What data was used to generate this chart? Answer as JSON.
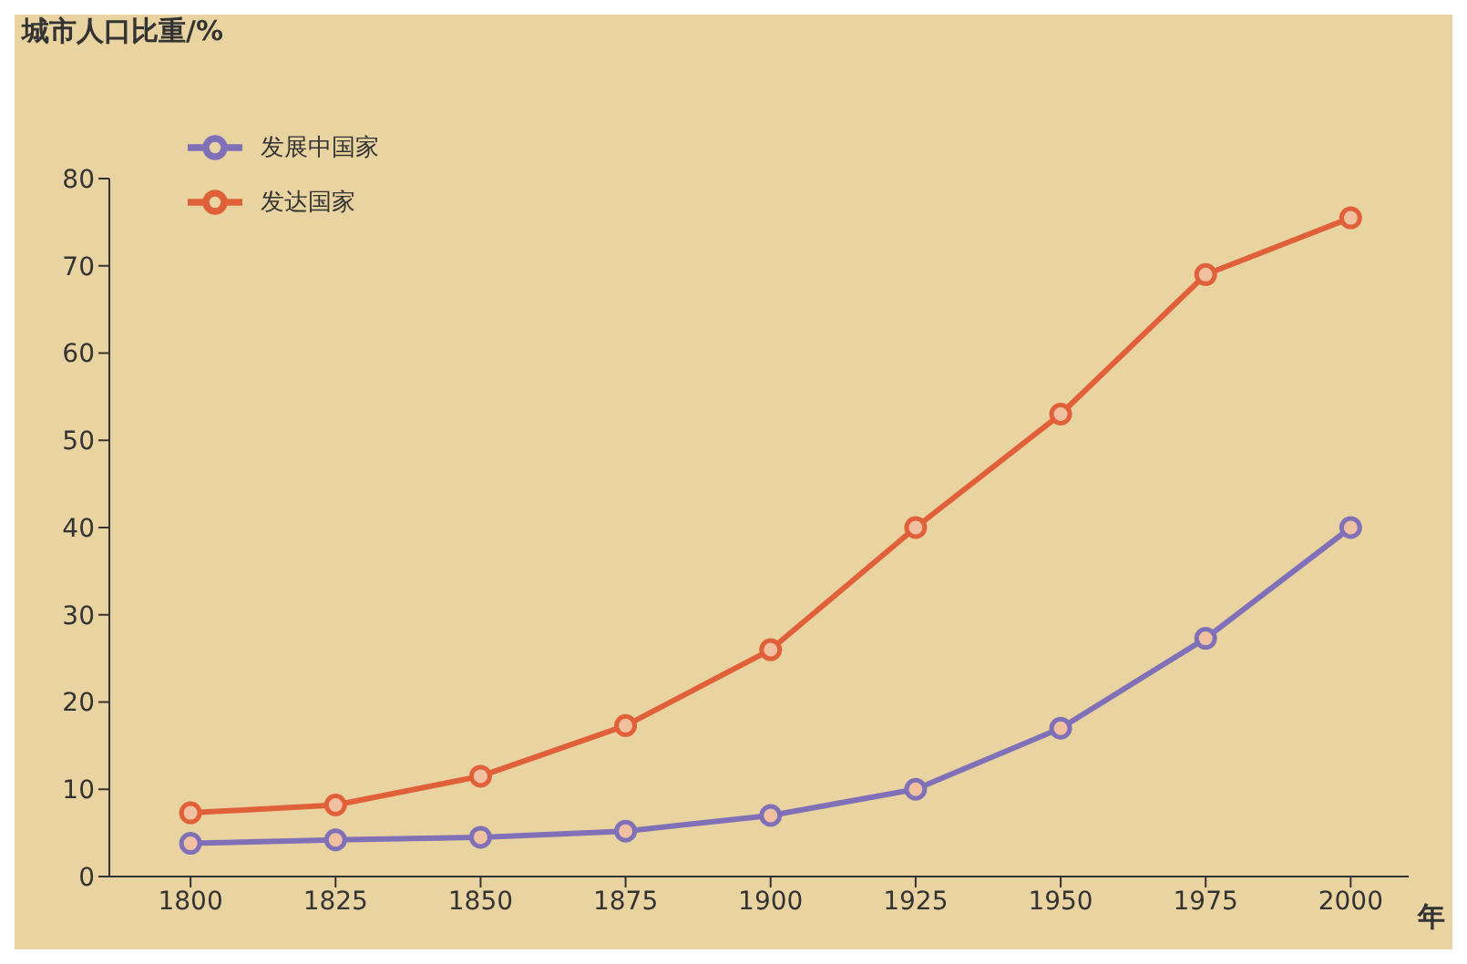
{
  "chart_data": {
    "type": "line",
    "ylabel": "城市人口比重/%",
    "xlabel": "年",
    "x": [
      1800,
      1825,
      1850,
      1875,
      1900,
      1925,
      1950,
      1975,
      2000
    ],
    "series": [
      {
        "name": "发达国家",
        "color": "#e0603a",
        "values": [
          7.3,
          8.2,
          11.5,
          17.3,
          26,
          40,
          53,
          69,
          75.5
        ]
      },
      {
        "name": "发展中国家",
        "color": "#8070b8",
        "values": [
          3.8,
          4.2,
          4.5,
          5.2,
          7,
          10,
          17,
          27.3,
          40
        ]
      }
    ],
    "xlim": [
      1786,
      2010
    ],
    "xticks": [
      1800,
      1825,
      1850,
      1875,
      1900,
      1925,
      1950,
      1975,
      2000
    ],
    "ylim": [
      0,
      80
    ],
    "yticks": [
      0,
      10,
      20,
      30,
      40,
      50,
      60,
      70,
      80
    ],
    "legend": "top left",
    "marker": "circle",
    "line_style": "solid",
    "grid": false
  }
}
